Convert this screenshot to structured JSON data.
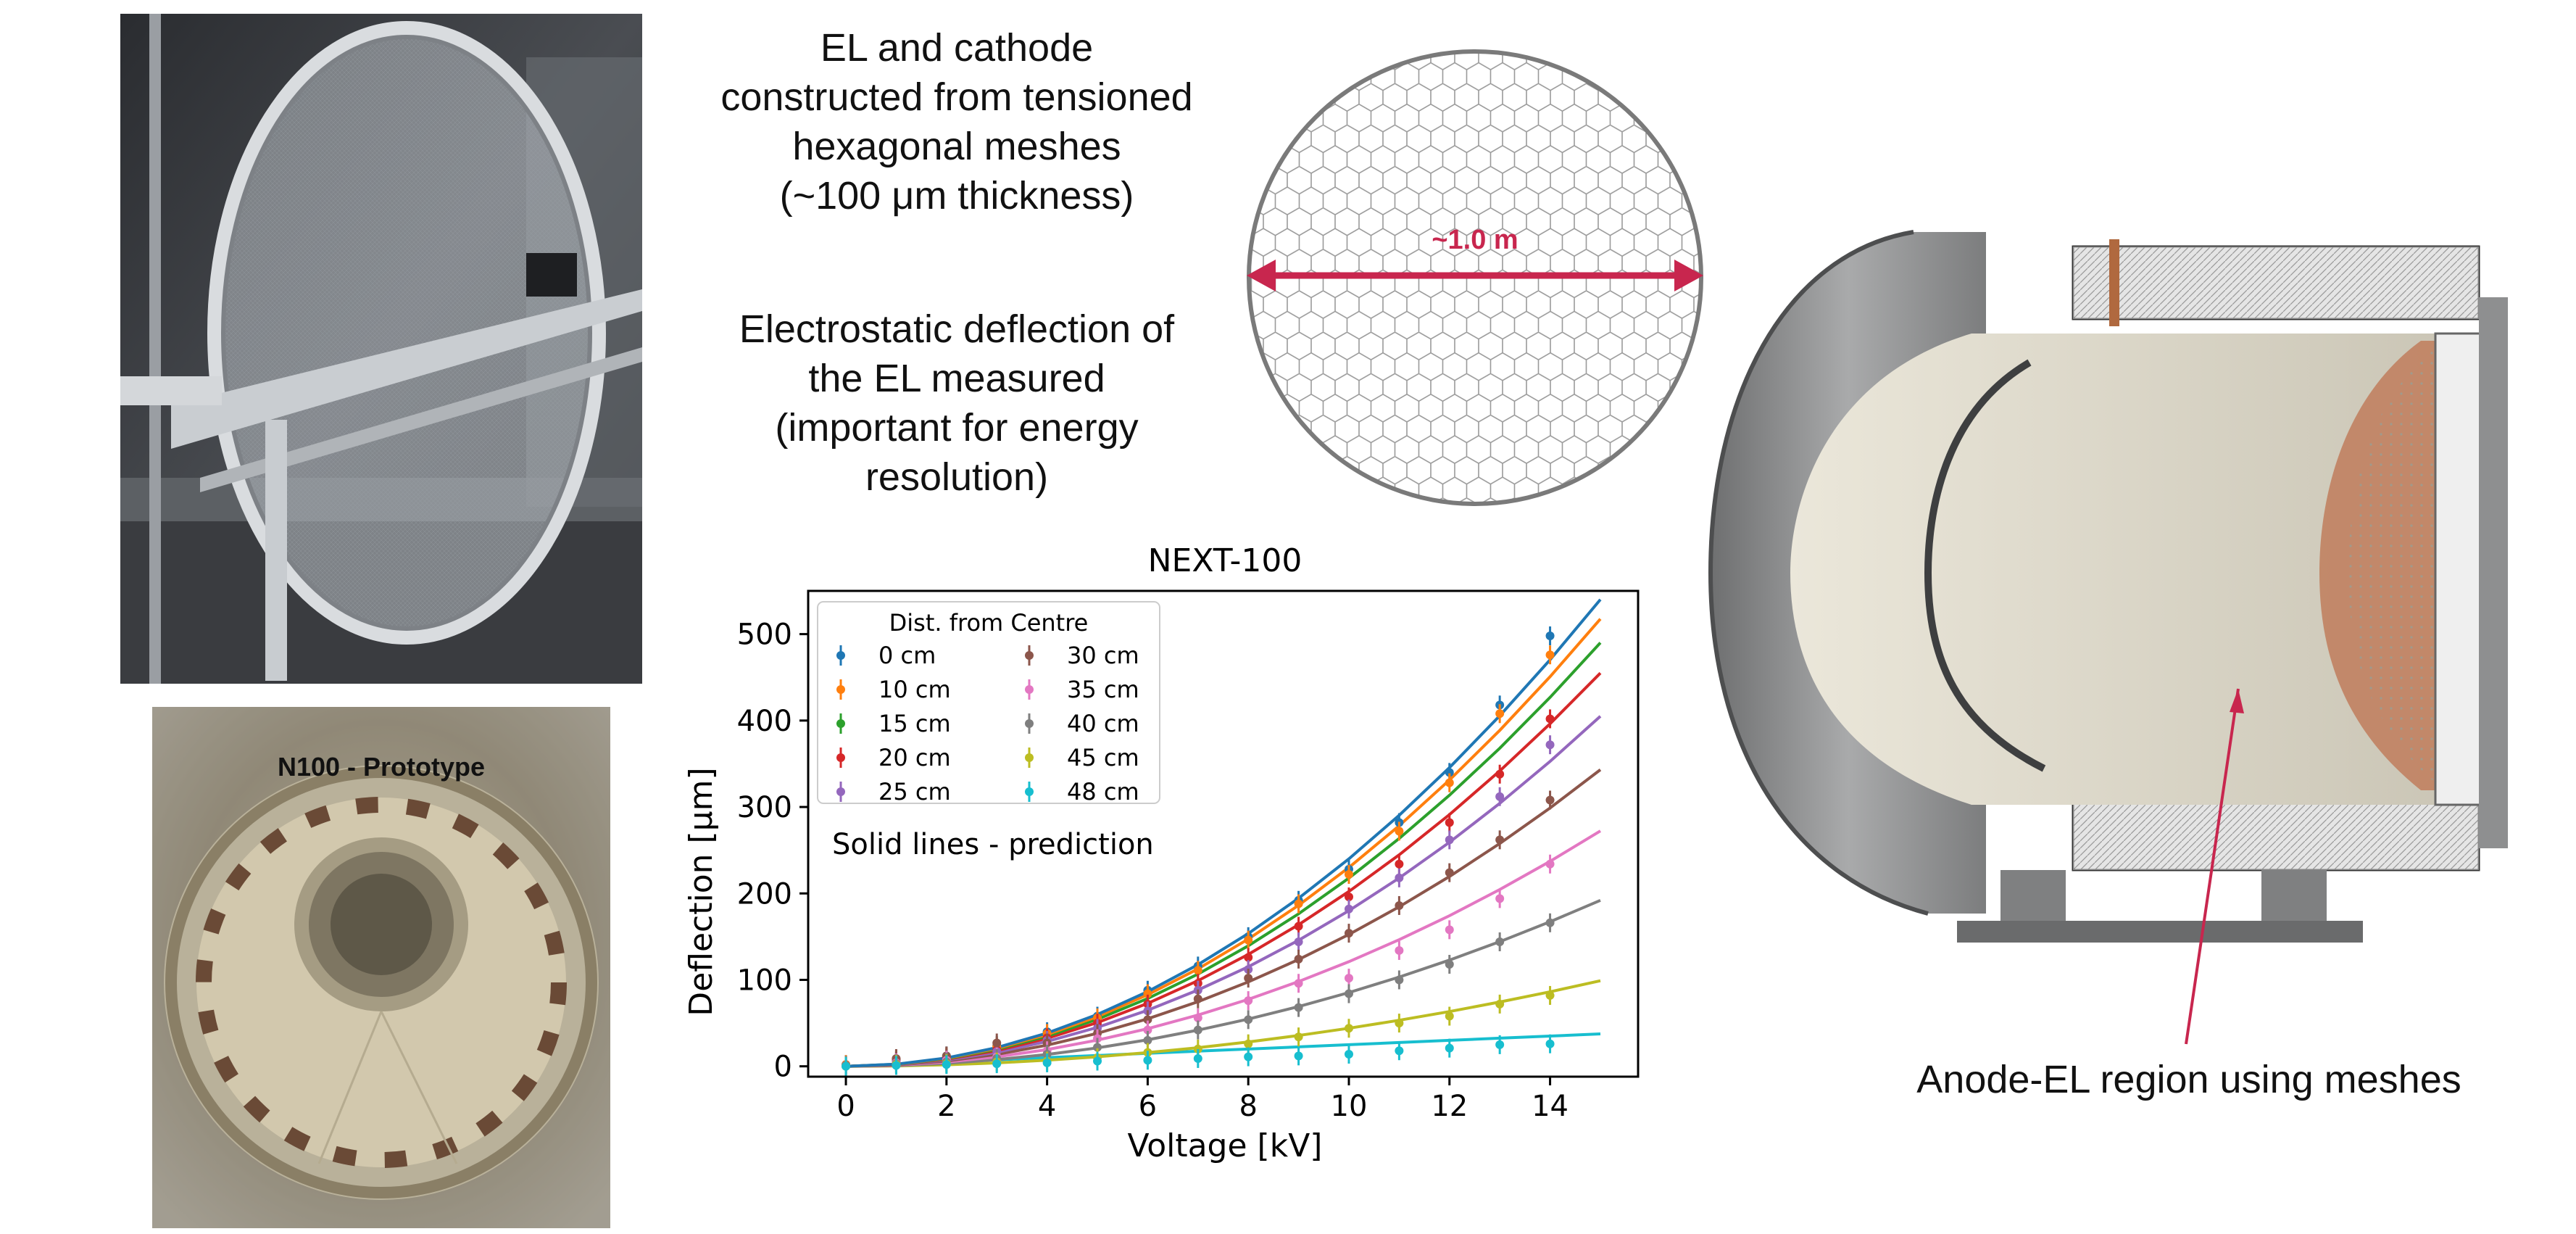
{
  "captions": {
    "mesh_description": [
      "EL and cathode",
      "constructed from tensioned",
      "hexagonal meshes",
      "(~100 μm thickness)"
    ],
    "deflection_description": [
      "Electrostatic deflection of",
      "the EL measured",
      "(important for energy",
      "resolution)"
    ],
    "anode_label": "Anode-EL region using meshes"
  },
  "mesh_diagram": {
    "dimension_label": "~1.0 m",
    "accent_color": "#c8264e"
  },
  "prototype_photo": {
    "label": "N100 - Prototype"
  },
  "chart_data": {
    "type": "line",
    "title": "NEXT-100",
    "xlabel": "Voltage [kV]",
    "ylabel": "Deflection [μm]",
    "xlim": [
      -0.75,
      15.75
    ],
    "ylim": [
      -12,
      550
    ],
    "xticks": [
      0,
      2,
      4,
      6,
      8,
      10,
      12,
      14
    ],
    "yticks": [
      0,
      100,
      200,
      300,
      400,
      500
    ],
    "legend_title": "Dist. from Centre",
    "legend_position": "top-left",
    "annotation": "Solid lines - prediction",
    "measured_x": [
      0,
      1,
      2,
      3,
      4,
      5,
      6,
      7,
      8,
      9,
      10,
      11,
      12,
      13,
      14
    ],
    "prediction_x": [
      0,
      1,
      2,
      3,
      4,
      5,
      6,
      7,
      8,
      9,
      10,
      11,
      12,
      13,
      14,
      15
    ],
    "series": [
      {
        "name": "0 cm",
        "color": "#1f77b4",
        "prediction": [
          0,
          2.4,
          9.6,
          21.6,
          38.4,
          60,
          86.4,
          117.6,
          153.6,
          194.4,
          240,
          290.4,
          345.6,
          405.6,
          470.4,
          540
        ],
        "measured": [
          2,
          6,
          12,
          24,
          40,
          58,
          88,
          116,
          150,
          192,
          228,
          282,
          340,
          418,
          498
        ]
      },
      {
        "name": "10 cm",
        "color": "#ff7f0e",
        "prediction": [
          0,
          2.3,
          9.2,
          20.7,
          36.8,
          57.5,
          82.8,
          112.7,
          147.2,
          186.3,
          230,
          278.3,
          331.2,
          388.7,
          450.8,
          517.5
        ],
        "measured": [
          2,
          7,
          11,
          23,
          38,
          56,
          84,
          111,
          146,
          188,
          222,
          272,
          328,
          408,
          476
        ]
      },
      {
        "name": "15 cm",
        "color": "#2ca02c",
        "prediction": [
          0,
          2.18,
          8.71,
          19.6,
          34.84,
          54.44,
          78.4,
          106.71,
          139.38,
          176.4,
          217.78,
          263.51,
          313.6,
          368.04,
          426.84,
          490
        ]
      },
      {
        "name": "20 cm",
        "color": "#d62728",
        "prediction": [
          0,
          2.02,
          8.09,
          18.2,
          32.36,
          50.56,
          72.8,
          99.09,
          129.42,
          163.8,
          202.22,
          244.69,
          291.2,
          341.76,
          396.36,
          455
        ],
        "measured": [
          1,
          8,
          10,
          19,
          33,
          50,
          72,
          96,
          126,
          162,
          196,
          234,
          282,
          338,
          402
        ]
      },
      {
        "name": "25 cm",
        "color": "#9467bd",
        "prediction": [
          0,
          1.8,
          7.2,
          16.2,
          28.8,
          45,
          64.8,
          88.2,
          115.2,
          145.8,
          180,
          217.8,
          259.2,
          304.2,
          352.8,
          405
        ],
        "measured": [
          1,
          6,
          8,
          17,
          30,
          44,
          64,
          88,
          112,
          144,
          182,
          218,
          262,
          312,
          372
        ]
      },
      {
        "name": "30 cm",
        "color": "#8c564b",
        "prediction": [
          0,
          1.53,
          6.1,
          13.72,
          24.4,
          38.13,
          54.9,
          74.73,
          97.6,
          123.53,
          152.5,
          184.53,
          219.6,
          257.73,
          298.9,
          343.13
        ],
        "measured": [
          1,
          9,
          12,
          27,
          27,
          38,
          54,
          78,
          102,
          124,
          154,
          186,
          224,
          262,
          308
        ]
      },
      {
        "name": "35 cm",
        "color": "#e377c2",
        "prediction": [
          0,
          1.21,
          4.84,
          10.89,
          19.36,
          30.25,
          43.56,
          59.29,
          77.44,
          98.01,
          121,
          146.41,
          174.24,
          204.49,
          237.16,
          272.25
        ],
        "measured": [
          1,
          4,
          7,
          11,
          18,
          32,
          42,
          56,
          76,
          96,
          102,
          134,
          158,
          194,
          234
        ]
      },
      {
        "name": "40 cm",
        "color": "#7f7f7f",
        "prediction": [
          0,
          0.85,
          3.41,
          7.68,
          13.65,
          21.33,
          30.72,
          41.81,
          54.61,
          69.12,
          85.33,
          103.25,
          122.88,
          144.21,
          167.25,
          192
        ],
        "measured": [
          1,
          3,
          5,
          9,
          14,
          22,
          30,
          42,
          54,
          68,
          84,
          100,
          118,
          144,
          166
        ]
      },
      {
        "name": "45 cm",
        "color": "#bcbd22",
        "prediction": [
          0,
          0.44,
          1.76,
          3.96,
          7.04,
          11,
          15.84,
          21.56,
          28.16,
          35.64,
          44,
          53.24,
          63.36,
          74.36,
          86.24,
          99
        ],
        "measured": [
          0,
          2,
          3,
          5,
          6,
          10,
          16,
          20,
          26,
          34,
          44,
          50,
          58,
          72,
          82
        ]
      },
      {
        "name": "48 cm",
        "color": "#17becf",
        "prediction": [
          0,
          2.5,
          5,
          7.5,
          10,
          12.5,
          15,
          17.5,
          20,
          22.5,
          25,
          27.5,
          30,
          32.5,
          35,
          37.5
        ],
        "measured": [
          0,
          1,
          2,
          3,
          4,
          6,
          7,
          9,
          11,
          12,
          14,
          18,
          21,
          25,
          26
        ]
      }
    ]
  }
}
